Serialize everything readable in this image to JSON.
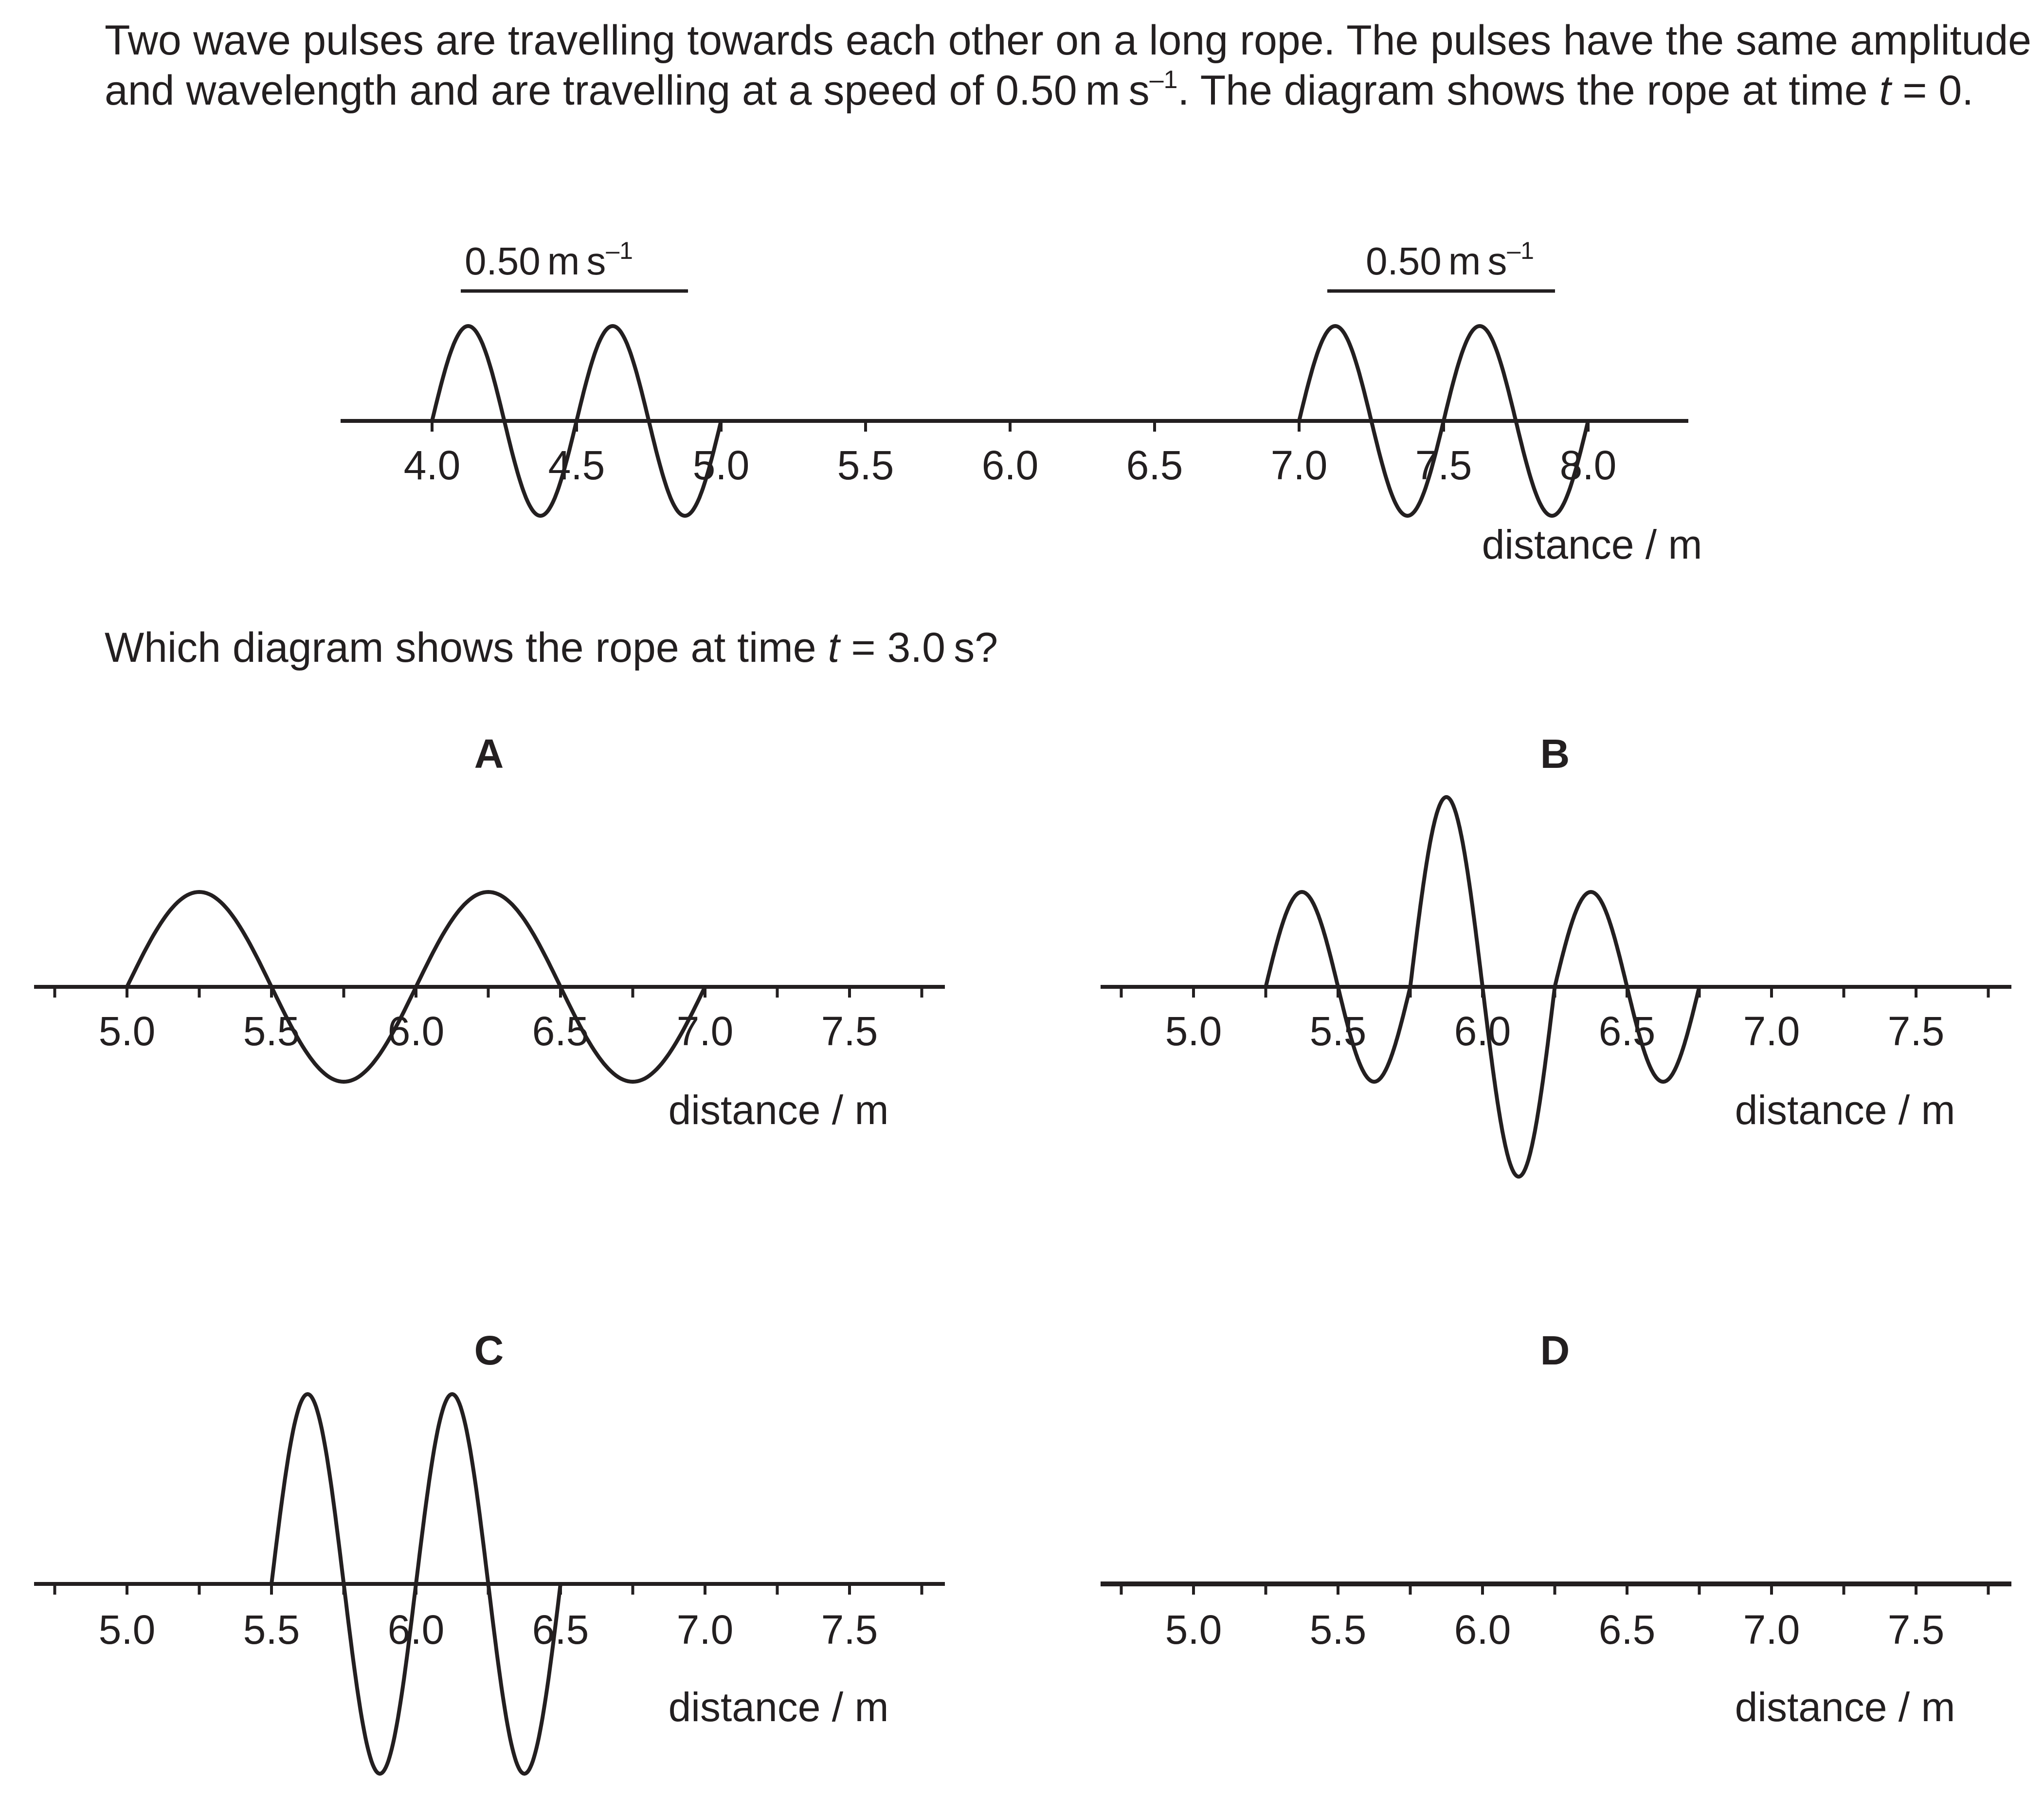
{
  "intro": {
    "text_before": "Two wave pulses are travelling towards each other on a long rope. The pulses have the same amplitude and wavelength and are travelling at a speed of ",
    "speed": "0.50",
    "unit_m": "m",
    "unit_s": "s",
    "exponent": "–1",
    "text_after": ". The diagram shows the rope at time ",
    "var_t": "t",
    "eq_zero": " = 0."
  },
  "question": {
    "text_before": "Which diagram shows the rope at time ",
    "var_t": "t",
    "eq_text": " = 3.0",
    "unit_s": "s",
    "end": "?"
  },
  "diagrams": [
    {
      "id": "initial",
      "label": "",
      "x_label": "distance / m",
      "ticks": [
        4.0,
        4.5,
        5.0,
        5.5,
        6.0,
        6.5,
        7.0,
        7.5,
        8.0
      ],
      "tick_labels": [
        "4.0",
        "4.5",
        "5.0",
        "5.5",
        "6.0",
        "6.5",
        "7.0",
        "7.5",
        "8.0"
      ],
      "pulses": [
        {
          "start": 4.0,
          "end": 5.0,
          "amplitude": 1
        },
        {
          "start": 7.0,
          "end": 8.0,
          "amplitude": 1
        }
      ],
      "arrows": [
        {
          "direction": "right",
          "label": "0.50 m s–1"
        },
        {
          "direction": "left",
          "label": "0.50 m s–1"
        }
      ]
    },
    {
      "id": "A",
      "label": "A",
      "x_label": "distance / m",
      "ticks": [
        4.75,
        5.0,
        5.25,
        5.5,
        5.75,
        6.0,
        6.25,
        6.5,
        6.75,
        7.0,
        7.25,
        7.5,
        7.75
      ],
      "tick_labels": [
        "5.0",
        "5.5",
        "6.0",
        "6.5",
        "7.0",
        "7.5"
      ],
      "pulses": [
        {
          "start": 5.0,
          "end": 7.0,
          "amplitude": 1
        }
      ]
    },
    {
      "id": "B",
      "label": "B",
      "x_label": "distance / m",
      "ticks": [
        4.75,
        5.0,
        5.25,
        5.5,
        5.75,
        6.0,
        6.25,
        6.5,
        6.75,
        7.0,
        7.25,
        7.5,
        7.75
      ],
      "tick_labels": [
        "5.0",
        "5.5",
        "6.0",
        "6.5",
        "7.0",
        "7.5"
      ],
      "pulses": [
        {
          "start": 5.25,
          "end": 5.75,
          "amplitude": 1
        },
        {
          "start": 5.75,
          "end": 6.25,
          "amplitude": 2
        },
        {
          "start": 6.25,
          "end": 6.75,
          "amplitude": 1
        }
      ]
    },
    {
      "id": "C",
      "label": "C",
      "x_label": "distance / m",
      "ticks": [
        4.75,
        5.0,
        5.25,
        5.5,
        5.75,
        6.0,
        6.25,
        6.5,
        6.75,
        7.0,
        7.25,
        7.5,
        7.75
      ],
      "tick_labels": [
        "5.0",
        "5.5",
        "6.0",
        "6.5",
        "7.0",
        "7.5"
      ],
      "pulses": [
        {
          "start": 5.5,
          "end": 6.5,
          "amplitude": 2
        }
      ]
    },
    {
      "id": "D",
      "label": "D",
      "x_label": "distance / m",
      "ticks": [
        4.75,
        5.0,
        5.25,
        5.5,
        5.75,
        6.0,
        6.25,
        6.5,
        6.75,
        7.0,
        7.25,
        7.5,
        7.75
      ],
      "tick_labels": [
        "5.0",
        "5.5",
        "6.0",
        "6.5",
        "7.0",
        "7.5"
      ],
      "pulses": []
    }
  ]
}
